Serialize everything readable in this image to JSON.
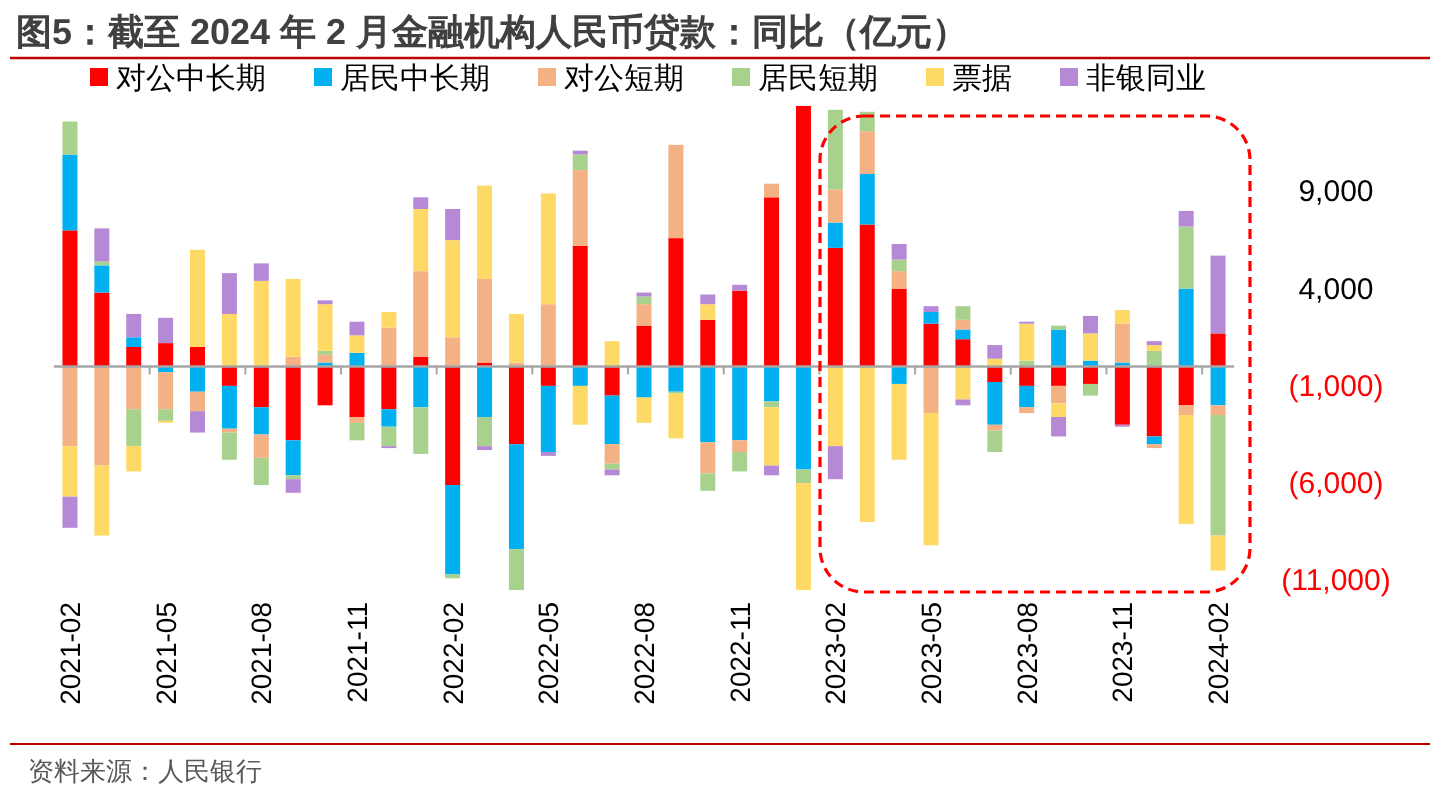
{
  "chart_data": {
    "type": "bar",
    "stacked": true,
    "title": "图5：截至 2024 年 2 月金融机构人民币贷款：同比（亿元）",
    "categories": [
      "2021-02",
      null,
      null,
      "2021-05",
      null,
      null,
      "2021-08",
      null,
      null,
      "2021-11",
      null,
      null,
      "2022-02",
      null,
      null,
      "2022-05",
      null,
      null,
      "2022-08",
      null,
      null,
      "2022-11",
      null,
      null,
      "2023-02",
      null,
      null,
      "2023-05",
      null,
      null,
      "2023-08",
      null,
      null,
      "2023-11",
      null,
      null,
      "2024-02"
    ],
    "series": [
      {
        "name": "对公中长期",
        "color": "#ff0000",
        "values": [
          7000,
          3800,
          1000,
          1200,
          1000,
          -1000,
          -2100,
          -3800,
          -2000,
          -2600,
          -2200,
          500,
          -6100,
          200,
          -4000,
          -1000,
          6200,
          -1500,
          2100,
          6600,
          2400,
          3900,
          8700,
          13400,
          6100,
          7300,
          4000,
          2200,
          1400,
          -800,
          -1000,
          -1000,
          -900,
          -3000,
          -3600,
          -2000,
          1700
        ]
      },
      {
        "name": "居民中长期",
        "color": "#00b0f0",
        "values": [
          3900,
          1400,
          500,
          -300,
          -1300,
          -2200,
          -1400,
          -1800,
          200,
          700,
          -900,
          -2100,
          -4600,
          -2600,
          -5400,
          -3400,
          -1000,
          -2500,
          -1600,
          -1300,
          -3900,
          -3800,
          -1800,
          -5300,
          1300,
          2600,
          -900,
          600,
          500,
          -2200,
          -1100,
          1900,
          300,
          200,
          -400,
          4000,
          -2000
        ]
      },
      {
        "name": "对公短期",
        "color": "#f4b183",
        "values": [
          -4100,
          -5100,
          -2200,
          -1900,
          -1000,
          -200,
          -1200,
          500,
          400,
          -300,
          2000,
          4400,
          1500,
          4300,
          200,
          3200,
          3900,
          -1000,
          1100,
          4800,
          -1600,
          -600,
          700,
          0,
          1700,
          2200,
          900,
          -2400,
          500,
          -300,
          -300,
          -900,
          0,
          2000,
          -200,
          -500,
          -500
        ]
      },
      {
        "name": "居民短期",
        "color": "#a9d18e",
        "values": [
          1700,
          200,
          -1900,
          -600,
          0,
          -1400,
          -1400,
          -200,
          200,
          -900,
          -1000,
          -2400,
          -200,
          -1500,
          -2100,
          0,
          800,
          -300,
          400,
          -100,
          -900,
          -1000,
          -300,
          -700,
          4100,
          1000,
          600,
          0,
          700,
          -1100,
          300,
          200,
          -600,
          0,
          800,
          3200,
          -6200
        ]
      },
      {
        "name": "票据",
        "color": "#ffd966",
        "values": [
          -2600,
          -3600,
          -1300,
          -100,
          5000,
          2700,
          4400,
          4000,
          2400,
          900,
          800,
          3200,
          5000,
          4800,
          2500,
          5700,
          -2000,
          1300,
          -1300,
          -2300,
          800,
          0,
          -3000,
          -5500,
          -4100,
          -8000,
          -3900,
          -6800,
          -1700,
          400,
          1900,
          -700,
          1400,
          700,
          300,
          -5600,
          -1800
        ]
      },
      {
        "name": "非银同业",
        "color": "#b589d6",
        "values": [
          -1600,
          1700,
          1200,
          1300,
          -1100,
          2100,
          900,
          -700,
          200,
          700,
          -100,
          600,
          1600,
          -200,
          0,
          -200,
          200,
          -300,
          200,
          0,
          500,
          300,
          -500,
          0,
          -1700,
          0,
          800,
          300,
          -300,
          700,
          100,
          -1000,
          900,
          -100,
          200,
          800,
          4000
        ]
      }
    ],
    "ylim": [
      -11500,
      13500
    ],
    "yticks": [
      {
        "value": 9000,
        "label": "9,000"
      },
      {
        "value": 4000,
        "label": "4,000"
      },
      {
        "value": -1000,
        "label": "(1,000)"
      },
      {
        "value": -6000,
        "label": "(6,000)"
      },
      {
        "value": -11000,
        "label": "(11,000)"
      }
    ],
    "legend": "top",
    "annotations": [
      "资料来源：人民银行"
    ]
  }
}
